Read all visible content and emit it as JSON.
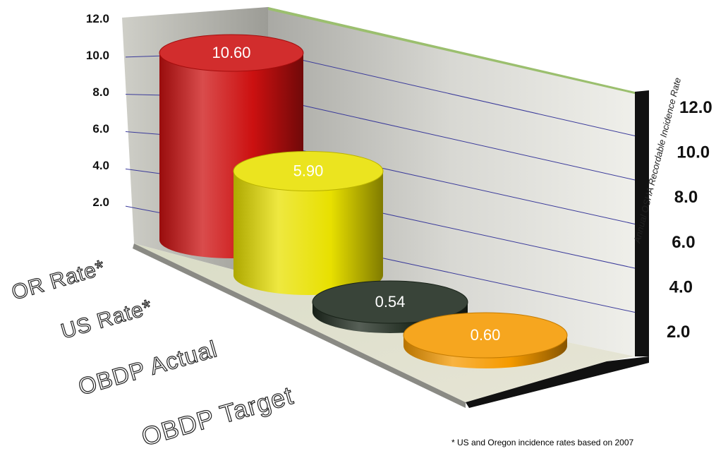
{
  "chart_data": {
    "type": "bar",
    "style": "3d-cylinder",
    "categories": [
      "OR Rate*",
      "US Rate*",
      "OBDP Actual",
      "OBDP Target"
    ],
    "values": [
      10.6,
      5.9,
      0.54,
      0.6
    ],
    "value_labels": [
      "10.60",
      "5.90",
      "0.54",
      "0.60"
    ],
    "colors": [
      "#cc1010",
      "#e8e000",
      "#1e2a1e",
      "#f59a00"
    ],
    "ylabel": "Annual OSHA Recordable Incidence Rate",
    "y_ticks": [
      "2.0",
      "4.0",
      "6.0",
      "8.0",
      "10.0",
      "12.0"
    ],
    "ylim": [
      0,
      12
    ],
    "grid": true,
    "footnote": "* US and Oregon incidence rates based on 2007"
  }
}
